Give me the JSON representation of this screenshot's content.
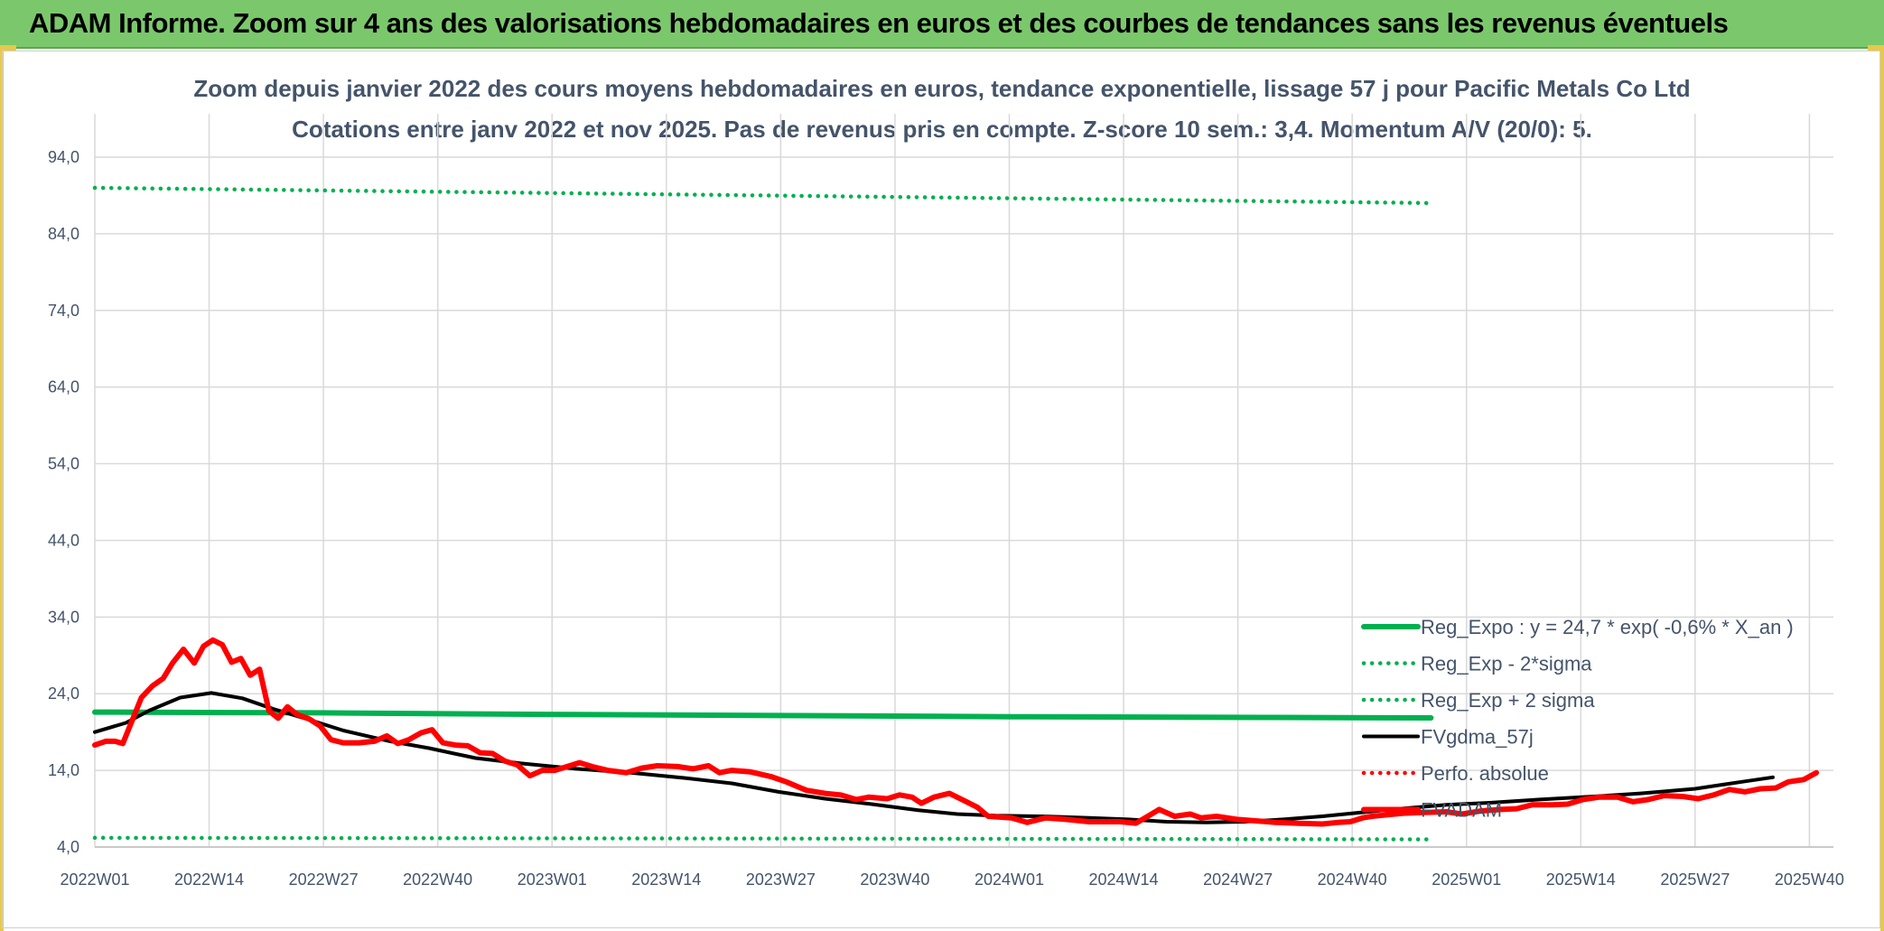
{
  "banner": {
    "title": "ADAM Informe. Zoom sur 4 ans des valorisations hebdomadaires en euros et des courbes de tendances sans les revenus éventuels"
  },
  "colors": {
    "banner": "#7bc86c",
    "grid": "#d9d9d9",
    "text": "#44546a",
    "green": "#00b050",
    "black": "#000000",
    "red": "#ff0000"
  },
  "chart_data": {
    "type": "line",
    "title": "Zoom depuis janvier 2022 des cours moyens hebdomadaires en euros, tendance exponentielle, lissage 57 j pour Pacific Metals Co Ltd",
    "subtitle": "Cotations entre janv 2022 et nov 2025. Pas de revenus pris en compte. Z-score 10 sem.: 3,4. Momentum A/V (20/0): 5.",
    "xlabel": "",
    "ylabel": "",
    "ylim": [
      4,
      99
    ],
    "y_ticks": [
      "4,0",
      "14,0",
      "24,0",
      "34,0",
      "44,0",
      "54,0",
      "64,0",
      "74,0",
      "84,0",
      "94,0"
    ],
    "x_ticks": [
      "2022W01",
      "2022W14",
      "2022W27",
      "2022W40",
      "2023W01",
      "2023W14",
      "2023W27",
      "2023W40",
      "2024W01",
      "2024W14",
      "2024W27",
      "2024W40",
      "2025W01",
      "2025W14",
      "2025W27",
      "2025W40"
    ],
    "grid": true,
    "legend_position": "bottom-right",
    "series": [
      {
        "name": "Reg_Expo : y = 24,7 * exp( -0,6% *  X_an )",
        "color": "#00b050",
        "style": "solid-thick",
        "values": [
          [
            0,
            21.6
          ],
          [
            145,
            21.5
          ],
          [
            290,
            21.3
          ],
          [
            440,
            21.15
          ],
          [
            591,
            21.0
          ],
          [
            760,
            20.9
          ],
          [
            860,
            20.85
          ]
        ]
      },
      {
        "name": "Reg_Exp - 2*sigma",
        "color": "#00b050",
        "style": "dotted",
        "values": [
          [
            0,
            5.2
          ],
          [
            860,
            5.0
          ]
        ]
      },
      {
        "name": "Reg_Exp + 2 sigma",
        "color": "#00b050",
        "style": "dotted",
        "values": [
          [
            0,
            90.0
          ],
          [
            860,
            88.0
          ]
        ]
      },
      {
        "name": "FVgdma_57j",
        "color": "#000000",
        "style": "solid",
        "values": [
          [
            0,
            19.0
          ],
          [
            20,
            20.2
          ],
          [
            35,
            21.8
          ],
          [
            55,
            23.5
          ],
          [
            75,
            24.1
          ],
          [
            95,
            23.4
          ],
          [
            115,
            22.0
          ],
          [
            135,
            20.8
          ],
          [
            160,
            19.2
          ],
          [
            190,
            17.8
          ],
          [
            215,
            16.9
          ],
          [
            245,
            15.6
          ],
          [
            275,
            14.9
          ],
          [
            310,
            14.2
          ],
          [
            345,
            13.7
          ],
          [
            380,
            13.0
          ],
          [
            410,
            12.3
          ],
          [
            440,
            11.2
          ],
          [
            470,
            10.3
          ],
          [
            500,
            9.6
          ],
          [
            530,
            8.8
          ],
          [
            555,
            8.3
          ],
          [
            580,
            8.1
          ],
          [
            610,
            8.0
          ],
          [
            640,
            7.8
          ],
          [
            665,
            7.6
          ],
          [
            690,
            7.3
          ],
          [
            715,
            7.2
          ],
          [
            740,
            7.3
          ],
          [
            765,
            7.6
          ],
          [
            790,
            8.0
          ],
          [
            815,
            8.5
          ],
          [
            840,
            9.0
          ],
          [
            870,
            9.5
          ],
          [
            900,
            9.8
          ],
          [
            930,
            10.2
          ],
          [
            965,
            10.6
          ],
          [
            995,
            11.0
          ],
          [
            1030,
            11.6
          ],
          [
            1060,
            12.5
          ],
          [
            1080,
            13.1
          ]
        ]
      },
      {
        "name": "Perfo. absolue",
        "color": "#ff0000",
        "style": "dotted",
        "values": []
      },
      {
        "name": "FVADAM",
        "color": "#ff0000",
        "style": "solid-thick",
        "values": [
          [
            0,
            17.3
          ],
          [
            7,
            17.8
          ],
          [
            13,
            17.8
          ],
          [
            18,
            17.5
          ],
          [
            25,
            21.0
          ],
          [
            30,
            23.5
          ],
          [
            37,
            25.0
          ],
          [
            44,
            26.0
          ],
          [
            50,
            28.0
          ],
          [
            57,
            29.8
          ],
          [
            64,
            28.0
          ],
          [
            70,
            30.2
          ],
          [
            76,
            31.0
          ],
          [
            82,
            30.4
          ],
          [
            88,
            28.1
          ],
          [
            94,
            28.6
          ],
          [
            100,
            26.4
          ],
          [
            106,
            27.2
          ],
          [
            112,
            21.8
          ],
          [
            118,
            20.8
          ],
          [
            124,
            22.3
          ],
          [
            130,
            21.3
          ],
          [
            138,
            20.7
          ],
          [
            145,
            19.8
          ],
          [
            152,
            18.0
          ],
          [
            160,
            17.6
          ],
          [
            170,
            17.6
          ],
          [
            180,
            17.8
          ],
          [
            188,
            18.5
          ],
          [
            195,
            17.5
          ],
          [
            202,
            18.0
          ],
          [
            210,
            18.9
          ],
          [
            217,
            19.3
          ],
          [
            224,
            17.6
          ],
          [
            232,
            17.3
          ],
          [
            240,
            17.2
          ],
          [
            248,
            16.3
          ],
          [
            256,
            16.2
          ],
          [
            264,
            15.2
          ],
          [
            272,
            14.7
          ],
          [
            280,
            13.3
          ],
          [
            288,
            14.0
          ],
          [
            296,
            14.0
          ],
          [
            304,
            14.5
          ],
          [
            312,
            15.0
          ],
          [
            320,
            14.5
          ],
          [
            330,
            14.0
          ],
          [
            342,
            13.7
          ],
          [
            352,
            14.3
          ],
          [
            362,
            14.6
          ],
          [
            375,
            14.5
          ],
          [
            385,
            14.2
          ],
          [
            395,
            14.6
          ],
          [
            402,
            13.7
          ],
          [
            410,
            14.0
          ],
          [
            422,
            13.8
          ],
          [
            435,
            13.2
          ],
          [
            445,
            12.5
          ],
          [
            458,
            11.4
          ],
          [
            470,
            11.0
          ],
          [
            480,
            10.8
          ],
          [
            490,
            10.2
          ],
          [
            498,
            10.5
          ],
          [
            510,
            10.3
          ],
          [
            518,
            10.8
          ],
          [
            526,
            10.5
          ],
          [
            532,
            9.7
          ],
          [
            540,
            10.5
          ],
          [
            550,
            11.0
          ],
          [
            560,
            10.0
          ],
          [
            568,
            9.2
          ],
          [
            575,
            8.0
          ],
          [
            590,
            7.8
          ],
          [
            600,
            7.2
          ],
          [
            612,
            7.8
          ],
          [
            625,
            7.6
          ],
          [
            640,
            7.3
          ],
          [
            660,
            7.3
          ],
          [
            670,
            7.1
          ],
          [
            676,
            7.8
          ],
          [
            685,
            8.9
          ],
          [
            695,
            8.0
          ],
          [
            705,
            8.3
          ],
          [
            712,
            7.8
          ],
          [
            722,
            8.0
          ],
          [
            735,
            7.6
          ],
          [
            748,
            7.4
          ],
          [
            760,
            7.2
          ],
          [
            775,
            7.1
          ],
          [
            790,
            7.0
          ],
          [
            800,
            7.2
          ],
          [
            808,
            7.3
          ],
          [
            816,
            7.8
          ],
          [
            822,
            8.0
          ],
          [
            832,
            8.2
          ],
          [
            842,
            8.4
          ],
          [
            855,
            8.5
          ],
          [
            870,
            8.6
          ],
          [
            880,
            8.3
          ],
          [
            892,
            8.7
          ],
          [
            905,
            8.9
          ],
          [
            915,
            9.0
          ],
          [
            925,
            9.5
          ],
          [
            938,
            9.5
          ],
          [
            948,
            9.6
          ],
          [
            958,
            10.2
          ],
          [
            968,
            10.5
          ],
          [
            980,
            10.5
          ],
          [
            990,
            9.9
          ],
          [
            1000,
            10.2
          ],
          [
            1010,
            10.7
          ],
          [
            1022,
            10.6
          ],
          [
            1032,
            10.3
          ],
          [
            1042,
            10.8
          ],
          [
            1052,
            11.5
          ],
          [
            1062,
            11.2
          ],
          [
            1072,
            11.6
          ],
          [
            1082,
            11.7
          ],
          [
            1090,
            12.5
          ],
          [
            1100,
            12.8
          ],
          [
            1108,
            13.7
          ]
        ]
      }
    ]
  }
}
